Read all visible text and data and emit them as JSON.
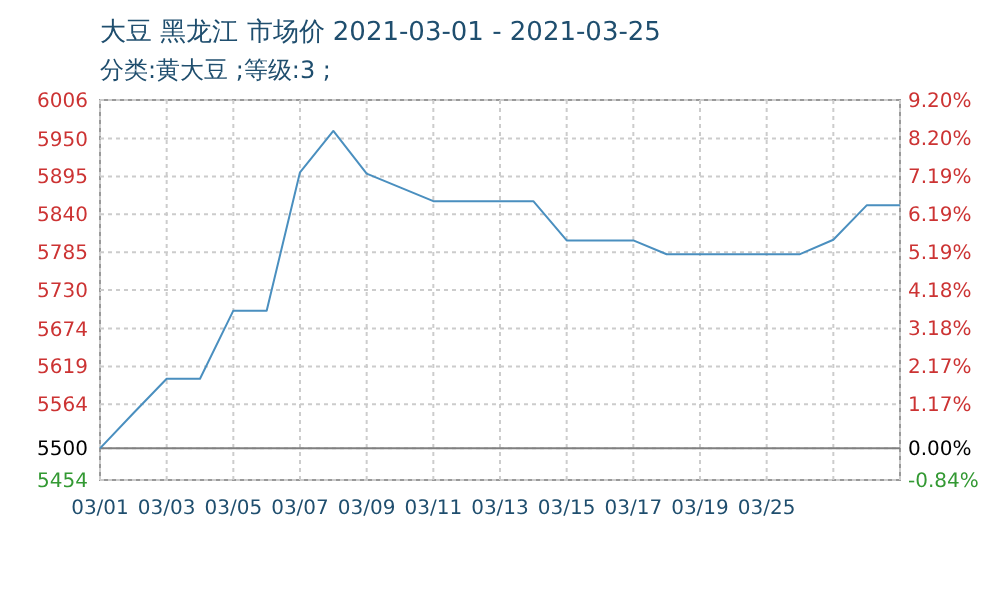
{
  "chart_data": {
    "type": "line",
    "title": "大豆 黑龙江 市场价 2021-03-01 - 2021-03-25",
    "subtitle": "分类:黄大豆 ;等级:3 ;",
    "categories": [
      "03/01",
      null,
      "03/03",
      null,
      "03/05",
      null,
      "03/07",
      null,
      "03/09",
      null,
      "03/11",
      null,
      "03/13",
      null,
      "03/15",
      null,
      "03/17",
      null,
      "03/19",
      null,
      "03/25",
      null,
      null,
      null,
      null
    ],
    "series": [
      {
        "color": "#4a8fbf",
        "values": [
          5500,
          5551,
          5601,
          5601,
          5700,
          5700,
          5901,
          5961,
          5899,
          5879,
          5859,
          5859,
          5859,
          5859,
          5802,
          5802,
          5802,
          5782,
          5782,
          5782,
          5782,
          5782,
          5803,
          5853,
          5853
        ]
      }
    ],
    "ylim": [
      5454,
      6006
    ],
    "yticks": [
      5454,
      5500,
      5564,
      5619,
      5674,
      5730,
      5785,
      5840,
      5895,
      5950,
      6006
    ],
    "y2lim": [
      -0.84,
      9.2
    ],
    "y2ticks": [
      {
        "value": -0.84,
        "label": "-0.84%"
      },
      {
        "value": 0,
        "label": "0.00%"
      },
      {
        "value": 1.17,
        "label": "1.17%"
      },
      {
        "value": 2.17,
        "label": "2.17%"
      },
      {
        "value": 3.18,
        "label": "3.18%"
      },
      {
        "value": 4.18,
        "label": "4.18%"
      },
      {
        "value": 5.19,
        "label": "5.19%"
      },
      {
        "value": 6.19,
        "label": "6.19%"
      },
      {
        "value": 7.19,
        "label": "7.19%"
      },
      {
        "value": 8.2,
        "label": "8.20%"
      },
      {
        "value": 9.2,
        "label": "9.20%"
      }
    ],
    "ref_lines": [
      {
        "axis": "y",
        "value": 5500,
        "color": "#808080"
      }
    ],
    "grid": true,
    "line_style": "solid"
  }
}
